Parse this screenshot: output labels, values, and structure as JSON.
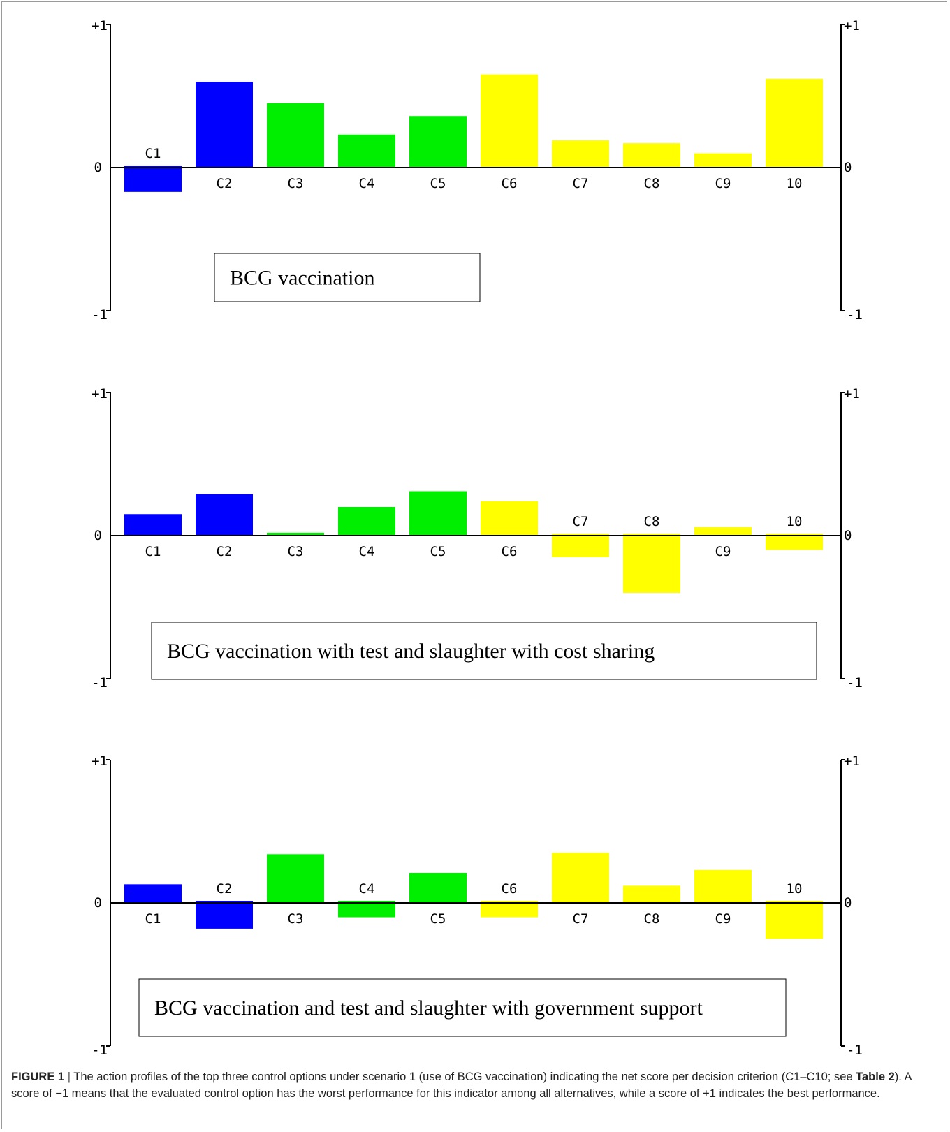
{
  "colors": {
    "blue": "#0000ff",
    "green": "#00ee00",
    "yellow": "#ffff00"
  },
  "chart_data": [
    {
      "type": "bar",
      "annotation": "BCG vaccination",
      "categories": [
        "C1",
        "C2",
        "C3",
        "C4",
        "C5",
        "C6",
        "C7",
        "C8",
        "C9",
        "10"
      ],
      "values": [
        -0.17,
        0.6,
        0.45,
        0.23,
        0.36,
        0.65,
        0.19,
        0.17,
        0.1,
        0.62
      ],
      "bar_colors": [
        "blue",
        "blue",
        "green",
        "green",
        "green",
        "yellow",
        "yellow",
        "yellow",
        "yellow",
        "yellow"
      ],
      "ylim": [
        -1,
        1
      ],
      "ytick_labels": [
        "+1",
        "0",
        "-1"
      ],
      "grid": false
    },
    {
      "type": "bar",
      "annotation": "BCG vaccination with test and slaughter with cost sharing",
      "categories": [
        "C1",
        "C2",
        "C3",
        "C4",
        "C5",
        "C6",
        "C7",
        "C8",
        "C9",
        "10"
      ],
      "values": [
        0.15,
        0.29,
        0.02,
        0.2,
        0.31,
        0.24,
        -0.15,
        -0.4,
        0.06,
        -0.1
      ],
      "bar_colors": [
        "blue",
        "blue",
        "green",
        "green",
        "green",
        "yellow",
        "yellow",
        "yellow",
        "yellow",
        "yellow"
      ],
      "ylim": [
        -1,
        1
      ],
      "ytick_labels": [
        "+1",
        "0",
        "-1"
      ],
      "grid": false
    },
    {
      "type": "bar",
      "annotation": "BCG vaccination and test and slaughter with government support",
      "categories": [
        "C1",
        "C2",
        "C3",
        "C4",
        "C5",
        "C6",
        "C7",
        "C8",
        "C9",
        "10"
      ],
      "values": [
        0.13,
        -0.18,
        0.34,
        -0.1,
        0.21,
        -0.1,
        0.35,
        0.12,
        0.23,
        -0.25
      ],
      "bar_colors": [
        "blue",
        "blue",
        "green",
        "green",
        "green",
        "yellow",
        "yellow",
        "yellow",
        "yellow",
        "yellow"
      ],
      "ylim": [
        -1,
        1
      ],
      "ytick_labels": [
        "+1",
        "0",
        "-1"
      ],
      "grid": false
    }
  ],
  "caption": {
    "figure_label": "FIGURE 1",
    "separator": " | ",
    "text_part1": "The action profiles of the top three control options under scenario 1 (use of BCG vaccination) indicating the net score per decision criterion (C1–C10; see ",
    "table_ref": "Table 2",
    "text_part2": "). A score of −1 means that the evaluated control option has the worst performance for this indicator among all alternatives, while a score of +1 indicates the best performance."
  }
}
